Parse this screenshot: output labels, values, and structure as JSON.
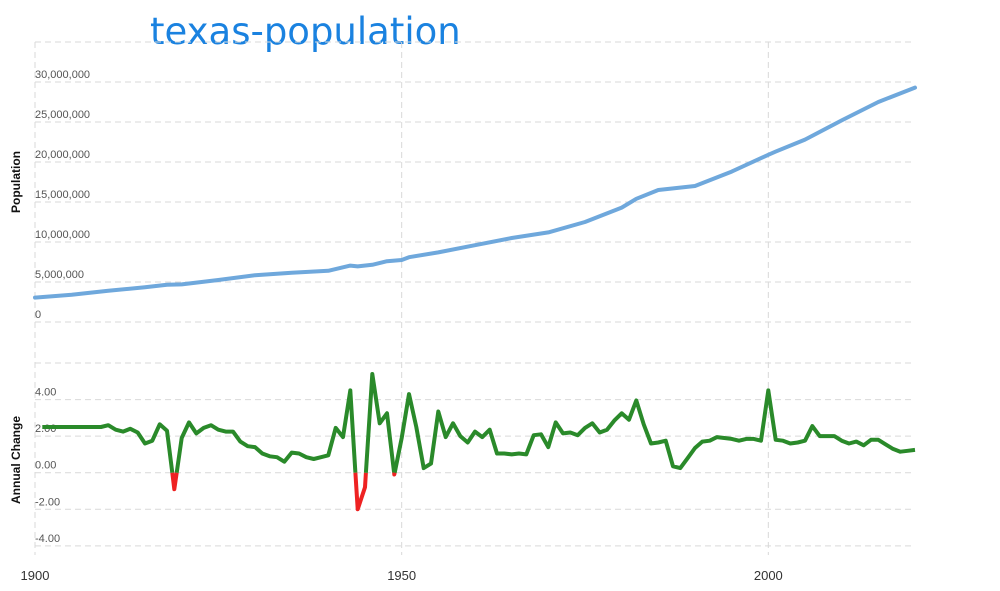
{
  "title": "texas-population",
  "chart_data": [
    {
      "type": "line",
      "ylabel": "Population",
      "xlim": [
        1900,
        2020
      ],
      "ylim": [
        0,
        35000000
      ],
      "yticks": [
        0,
        5000000,
        10000000,
        15000000,
        20000000,
        25000000,
        30000000
      ],
      "ytick_labels": [
        "0",
        "5,000,000",
        "10,000,000",
        "15,000,000",
        "20,000,000",
        "25,000,000",
        "30,000,000"
      ],
      "grid": true,
      "series": [
        {
          "color": "#6fa8dc",
          "x": [
            1900,
            1905,
            1910,
            1915,
            1918,
            1920,
            1925,
            1930,
            1935,
            1940,
            1943,
            1944,
            1946,
            1948,
            1950,
            1951,
            1955,
            1960,
            1965,
            1970,
            1975,
            1980,
            1982,
            1985,
            1990,
            1995,
            2000,
            2001,
            2005,
            2010,
            2015,
            2020
          ],
          "y": [
            3050000,
            3400000,
            3900000,
            4350000,
            4650000,
            4700000,
            5250000,
            5850000,
            6150000,
            6400000,
            7050000,
            6950000,
            7150000,
            7600000,
            7750000,
            8100000,
            8700000,
            9600000,
            10500000,
            11200000,
            12500000,
            14300000,
            15400000,
            16500000,
            17000000,
            18800000,
            20900000,
            21300000,
            22800000,
            25200000,
            27500000,
            29300000
          ]
        }
      ]
    },
    {
      "type": "line",
      "ylabel": "Annual Change",
      "xlim": [
        1900,
        2020
      ],
      "ylim": [
        -4.5,
        6.0
      ],
      "yticks": [
        -4,
        -2,
        0,
        2,
        4
      ],
      "ytick_labels": [
        "-4.00",
        "-2.00",
        "0.00",
        "2.00",
        "4.00"
      ],
      "grid": true,
      "colors": {
        "positive": "#2a8a2a",
        "negative": "#ee2222"
      },
      "series": [
        {
          "x": [
            1901,
            1903,
            1905,
            1907,
            1909,
            1910,
            1911,
            1912,
            1913,
            1914,
            1915,
            1916,
            1917,
            1918,
            1919,
            1920,
            1921,
            1922,
            1923,
            1924,
            1925,
            1926,
            1927,
            1928,
            1929,
            1930,
            1931,
            1932,
            1933,
            1934,
            1935,
            1936,
            1937,
            1938,
            1939,
            1940,
            1941,
            1942,
            1943,
            1944,
            1945,
            1946,
            1947,
            1948,
            1949,
            1950,
            1951,
            1952,
            1953,
            1954,
            1955,
            1956,
            1957,
            1958,
            1959,
            1960,
            1961,
            1962,
            1963,
            1964,
            1965,
            1966,
            1967,
            1968,
            1969,
            1970,
            1971,
            1972,
            1973,
            1974,
            1975,
            1976,
            1977,
            1978,
            1979,
            1980,
            1981,
            1982,
            1983,
            1984,
            1985,
            1986,
            1987,
            1988,
            1989,
            1990,
            1991,
            1992,
            1993,
            1994,
            1995,
            1996,
            1997,
            1998,
            1999,
            2000,
            2001,
            2002,
            2003,
            2004,
            2005,
            2006,
            2007,
            2008,
            2009,
            2010,
            2011,
            2012,
            2013,
            2014,
            2015,
            2016,
            2017,
            2018,
            2019,
            2020
          ],
          "y": [
            2.5,
            2.5,
            2.5,
            2.5,
            2.5,
            2.6,
            2.35,
            2.25,
            2.4,
            2.2,
            1.6,
            1.75,
            2.65,
            2.3,
            -0.9,
            1.9,
            2.75,
            2.15,
            2.45,
            2.6,
            2.35,
            2.25,
            2.25,
            1.7,
            1.45,
            1.4,
            1.05,
            0.9,
            0.85,
            0.6,
            1.1,
            1.05,
            0.85,
            0.75,
            0.85,
            0.95,
            2.45,
            1.95,
            4.5,
            -2.0,
            -0.8,
            5.4,
            2.7,
            3.25,
            -0.1,
            1.9,
            4.3,
            2.5,
            0.25,
            0.5,
            3.35,
            1.95,
            2.7,
            2.0,
            1.65,
            2.25,
            1.95,
            2.35,
            1.05,
            1.05,
            1.0,
            1.05,
            1.0,
            2.05,
            2.1,
            1.4,
            2.75,
            2.15,
            2.2,
            2.05,
            2.45,
            2.7,
            2.2,
            2.35,
            2.85,
            3.25,
            2.9,
            3.95,
            2.65,
            1.6,
            1.65,
            1.75,
            0.35,
            0.25,
            0.8,
            1.35,
            1.7,
            1.75,
            1.95,
            1.9,
            1.85,
            1.75,
            1.85,
            1.85,
            1.75,
            4.5,
            1.8,
            1.75,
            1.6,
            1.65,
            1.75,
            2.55,
            2.0,
            2.0,
            2.0,
            1.75,
            1.6,
            1.7,
            1.5,
            1.8,
            1.8,
            1.55,
            1.3,
            1.15,
            1.2,
            1.25
          ]
        }
      ]
    }
  ],
  "x_axis": {
    "ticks": [
      1900,
      1950,
      2000
    ],
    "tick_labels": [
      "1900",
      "1950",
      "2000"
    ]
  }
}
